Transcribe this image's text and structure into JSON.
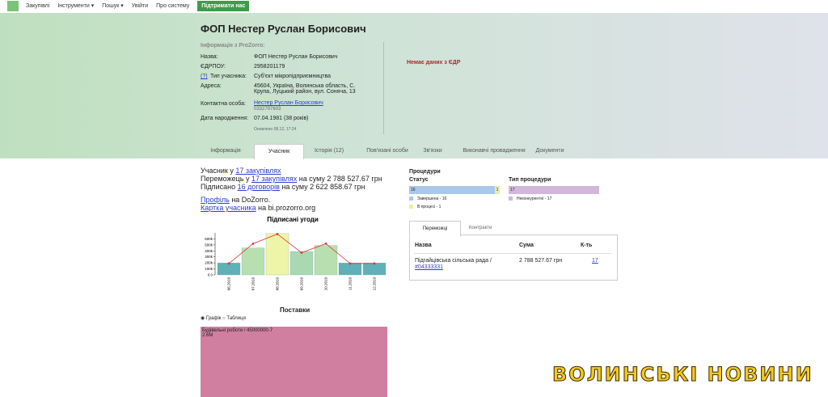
{
  "nav": {
    "items": [
      "Закупівлі",
      "Інструменти ▾",
      "Пошук ▾",
      "Увійти",
      "Про систему"
    ],
    "support": "Підтримати нас"
  },
  "header": {
    "title": "ФОП Нестер Руслан Борисович",
    "source_label": "Інформація з ProZorro:",
    "fields": [
      {
        "label": "Назва:",
        "value": "ФОП Нестер Руслан Борисович"
      },
      {
        "label": "ЄДРПОУ:",
        "value": "2958201179"
      },
      {
        "hint": "(?)",
        "label": "Тип учасника:",
        "value": "Суб'єкт мікропідприємництва"
      },
      {
        "label": "Адреса:",
        "value": "45604, Україна, Волинська область, С. Крупа, Луцький район, вул. Соняча, 13"
      },
      {
        "label": "Контактна особа:",
        "value": "Нестер Руслан Борисович",
        "phone": "0332797603"
      },
      {
        "label": "Дата народження:",
        "value": "07.04.1981 (38 років)"
      }
    ],
    "updated": "Оновлено 08.12, 17:24",
    "edr_note": "Немає даних з ЄДР"
  },
  "tabs": [
    "Інформація",
    "Учасник",
    "Історія (12)",
    "Пов'язані особи",
    "Зв'язки",
    "Виконавчі провадження",
    "Документи"
  ],
  "participant": {
    "line1": [
      "Учасник у ",
      "17 закупівлях"
    ],
    "line2": [
      "Переможець у ",
      "17 закупівлях",
      " на суму 2 788 527.67 грн"
    ],
    "line3": [
      "Підписано ",
      "16 договорів",
      " на суму 2 622 858.67 грн"
    ],
    "line4": [
      "Профіль",
      " на DoZorro."
    ],
    "line5": [
      "Картка учасника",
      " на bi.prozorro.org"
    ]
  },
  "signed_chart": {
    "type": "bar",
    "title": "Підписані угоди",
    "categories": [
      "06.2019",
      "07.2019",
      "08.2019",
      "09.2019",
      "10.2019",
      "11.2019",
      "12.2019"
    ],
    "bar_values": [
      200000,
      450000,
      690000,
      390000,
      490000,
      200000,
      200000
    ],
    "bar_colors": [
      "#5fb0b7",
      "#b8dfb0",
      "#eef5a8",
      "#a9d8b2",
      "#b8dfb0",
      "#5fb0b7",
      "#5fb0b7"
    ],
    "line_values": [
      190000,
      520000,
      680000,
      370000,
      520000,
      190000,
      190000
    ],
    "line_color": "#e03030",
    "ylim": [
      0,
      700000
    ],
    "yticks": [
      {
        "value": 0,
        "label": "0.0"
      },
      {
        "value": 100000,
        "label": "100k"
      },
      {
        "value": 200000,
        "label": "200k"
      },
      {
        "value": 300000,
        "label": "300k"
      },
      {
        "value": 400000,
        "label": "400k"
      },
      {
        "value": 500000,
        "label": "500k"
      },
      {
        "value": 600000,
        "label": "600k"
      }
    ]
  },
  "procedures": {
    "title": "Процедури",
    "status": {
      "title": "Статус",
      "values": [
        16,
        1
      ],
      "colors": [
        "#a9c8ea",
        "#e6eeab"
      ],
      "legend": [
        "Завершена - 16",
        "В процесі - 1"
      ]
    },
    "kind": {
      "title": "Тип процедури",
      "values": [
        17
      ],
      "colors": [
        "#d1b7dc"
      ],
      "legend": [
        "Неконкурентні - 17"
      ]
    }
  },
  "winners": {
    "tabs": [
      "Переможці",
      "Контракти"
    ],
    "columns": [
      "Назва",
      "Сума",
      "К-ть"
    ],
    "rows": [
      [
        "Підгайцівська сільська рада / ",
        "#04333331",
        "2 788 527.67 грн",
        "17"
      ]
    ]
  },
  "supplies": {
    "title": "Поставки",
    "options": [
      "Графік",
      "Таблиця"
    ],
    "items": [
      {
        "name": "Будівельні роботи / 45000000-7",
        "value": 2622858.67,
        "value_label": "2.6M",
        "color": "#d07fa0"
      }
    ]
  },
  "watermark": "ВОЛИНСЬКІ НОВИНИ"
}
